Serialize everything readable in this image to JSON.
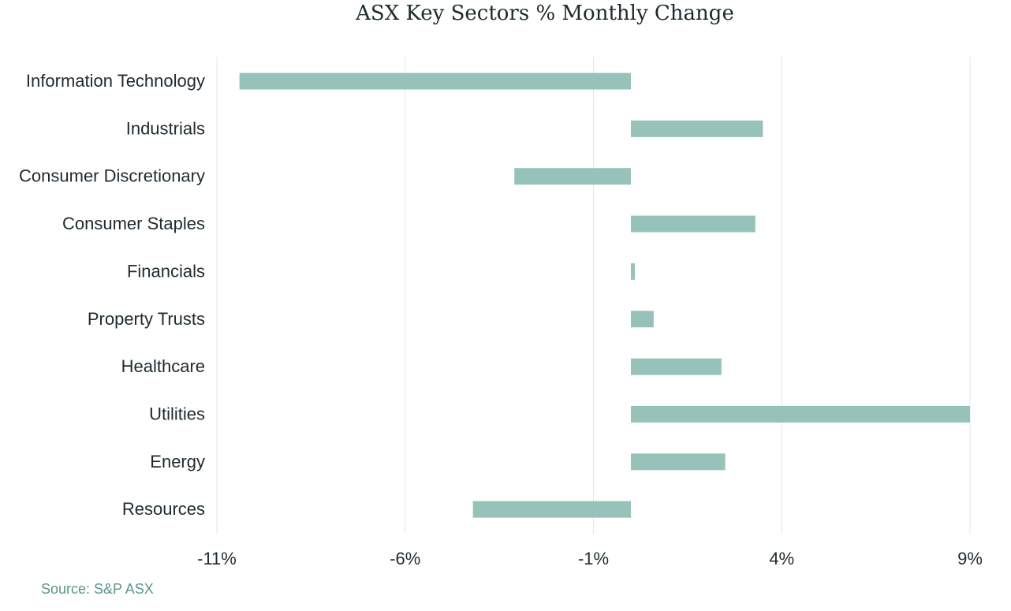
{
  "chart_data": {
    "type": "bar",
    "orientation": "horizontal",
    "title": "ASX Key Sectors % Monthly Change",
    "categories": [
      "Information Technology",
      "Industrials",
      "Consumer Discretionary",
      "Consumer Staples",
      "Financials",
      "Property Trusts",
      "Healthcare",
      "Utilities",
      "Energy",
      "Resources"
    ],
    "values": [
      -10.4,
      3.5,
      -3.1,
      3.3,
      0.1,
      0.6,
      2.4,
      9.0,
      2.5,
      -4.2
    ],
    "xlim": [
      -11,
      9
    ],
    "xticks": [
      -11,
      -6,
      -1,
      4,
      9
    ],
    "xtick_labels": [
      "-11%",
      "-6%",
      "-1%",
      "4%",
      "9%"
    ],
    "grid": true,
    "bar_color": "#97c2ba"
  },
  "source": "Source: S&P ASX"
}
